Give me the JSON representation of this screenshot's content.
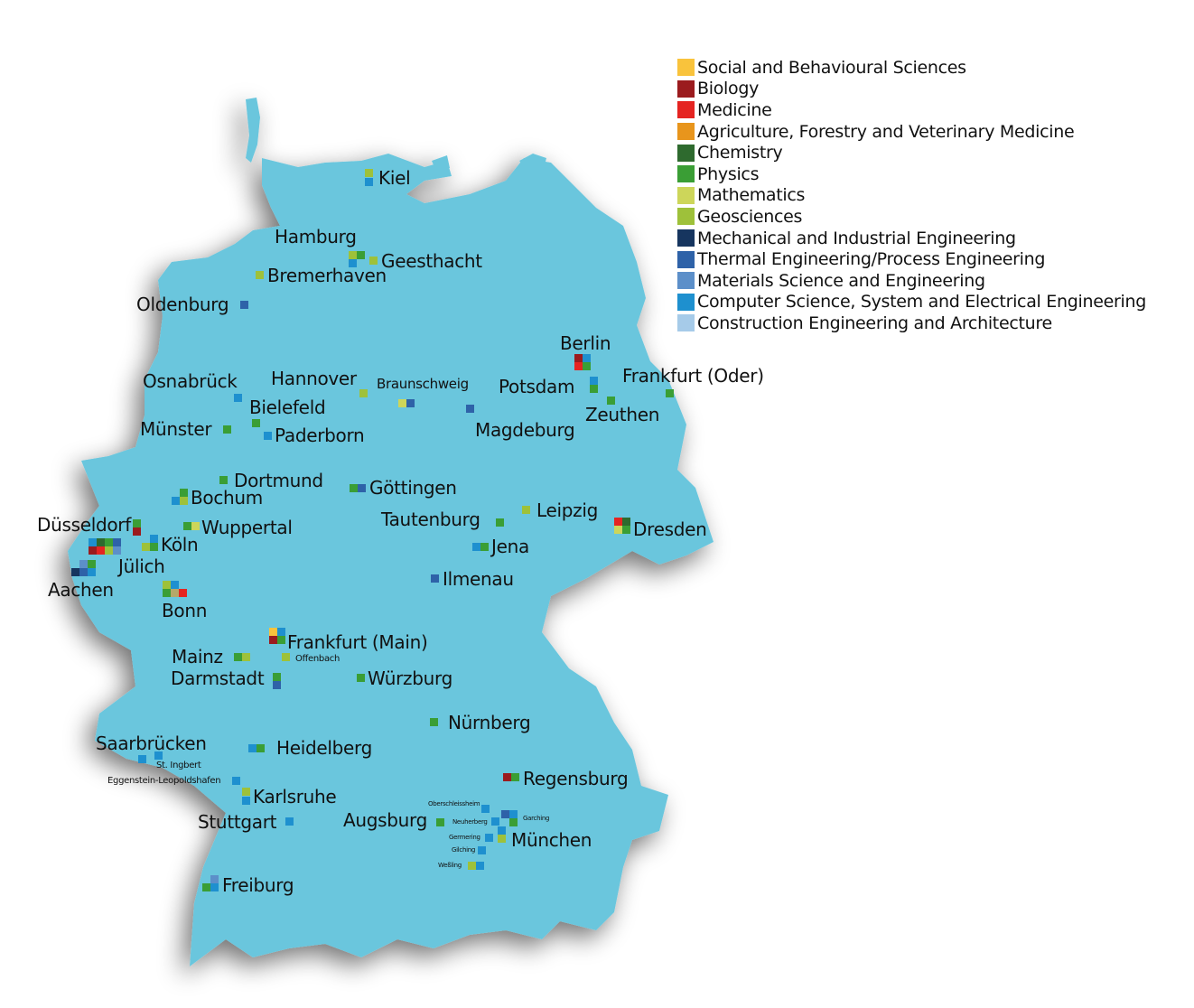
{
  "map_color": "#6ac6dd",
  "legend": [
    {
      "key": "social",
      "label": "Social and Behavioural Sciences",
      "color": "#f9c33c"
    },
    {
      "key": "biology",
      "label": "Biology",
      "color": "#9b1b1e"
    },
    {
      "key": "medicine",
      "label": "Medicine",
      "color": "#e52421"
    },
    {
      "key": "agriculture",
      "label": "Agriculture, Forestry and Veterinary Medicine",
      "color": "#e8951c"
    },
    {
      "key": "chemistry",
      "label": "Chemistry",
      "color": "#2e6a2e"
    },
    {
      "key": "physics",
      "label": "Physics",
      "color": "#3a9e35"
    },
    {
      "key": "mathematics",
      "label": "Mathematics",
      "color": "#cdd65a"
    },
    {
      "key": "geosciences",
      "label": "Geosciences",
      "color": "#9ec13a"
    },
    {
      "key": "mechanical",
      "label": "Mechanical and Industrial Engineering",
      "color": "#16355f"
    },
    {
      "key": "thermal",
      "label": "Thermal Engineering/Process Engineering",
      "color": "#2e62a8"
    },
    {
      "key": "materials",
      "label": "Materials Science and Engineering",
      "color": "#5c8fc9"
    },
    {
      "key": "cs",
      "label": "Computer Science, System and Electrical Engineering",
      "color": "#1e90cf"
    },
    {
      "key": "construction",
      "label": "Construction Engineering and Architecture",
      "color": "#a6cbe9"
    }
  ],
  "cities": [
    {
      "name": "Kiel",
      "fields": [
        "geosciences",
        "cs"
      ]
    },
    {
      "name": "Hamburg",
      "fields": [
        "geosciences",
        "physics",
        "cs"
      ]
    },
    {
      "name": "Geesthacht",
      "fields": [
        "geosciences"
      ]
    },
    {
      "name": "Bremerhaven",
      "fields": [
        "geosciences"
      ]
    },
    {
      "name": "Oldenburg",
      "fields": [
        "thermal"
      ]
    },
    {
      "name": "Osnabrück",
      "fields": [
        "cs"
      ]
    },
    {
      "name": "Hannover",
      "fields": [
        "geosciences"
      ]
    },
    {
      "name": "Braunschweig",
      "fields": [
        "mathematics",
        "thermal"
      ]
    },
    {
      "name": "Bielefeld",
      "fields": [
        "physics"
      ]
    },
    {
      "name": "Paderborn",
      "fields": [
        "cs"
      ]
    },
    {
      "name": "Münster",
      "fields": [
        "physics"
      ]
    },
    {
      "name": "Magdeburg",
      "fields": [
        "thermal"
      ]
    },
    {
      "name": "Berlin",
      "fields": [
        "biology",
        "cs",
        "medicine",
        "physics"
      ]
    },
    {
      "name": "Potsdam",
      "fields": [
        "cs",
        "physics"
      ]
    },
    {
      "name": "Zeuthen",
      "fields": [
        "physics"
      ]
    },
    {
      "name": "Frankfurt (Oder)",
      "fields": [
        "physics"
      ]
    },
    {
      "name": "Dortmund",
      "fields": [
        "physics"
      ]
    },
    {
      "name": "Bochum",
      "fields": [
        "physics",
        "cs",
        "geosciences"
      ]
    },
    {
      "name": "Göttingen",
      "fields": [
        "physics",
        "thermal"
      ]
    },
    {
      "name": "Leipzig",
      "fields": [
        "geosciences"
      ]
    },
    {
      "name": "Tautenburg",
      "fields": [
        "physics"
      ]
    },
    {
      "name": "Jena",
      "fields": [
        "cs",
        "physics"
      ]
    },
    {
      "name": "Dresden",
      "fields": [
        "medicine",
        "chemistry",
        "mathematics",
        "physics"
      ]
    },
    {
      "name": "Ilmenau",
      "fields": [
        "thermal"
      ]
    },
    {
      "name": "Düsseldorf",
      "fields": [
        "physics",
        "biology"
      ]
    },
    {
      "name": "Wuppertal",
      "fields": [
        "physics",
        "mathematics"
      ]
    },
    {
      "name": "Köln",
      "fields": [
        "cs",
        "geosciences",
        "physics"
      ]
    },
    {
      "name": "Jülich",
      "fields": [
        "cs",
        "chemistry",
        "physics",
        "thermal",
        "biology",
        "medicine",
        "geosciences",
        "materials"
      ]
    },
    {
      "name": "Aachen",
      "fields": [
        "materials",
        "physics",
        "mechanical",
        "thermal",
        "cs"
      ]
    },
    {
      "name": "Bonn",
      "fields": [
        "geosciences",
        "cs",
        "physics",
        "agriculture",
        "medicine"
      ]
    },
    {
      "name": "Frankfurt (Main)",
      "fields": [
        "social",
        "cs",
        "biology",
        "physics"
      ]
    },
    {
      "name": "Offenbach",
      "fields": [
        "geosciences"
      ]
    },
    {
      "name": "Mainz",
      "fields": [
        "physics",
        "geosciences"
      ]
    },
    {
      "name": "Darmstadt",
      "fields": [
        "physics",
        "thermal"
      ]
    },
    {
      "name": "Würzburg",
      "fields": [
        "physics"
      ]
    },
    {
      "name": "Nürnberg",
      "fields": [
        "physics"
      ]
    },
    {
      "name": "Saarbrücken",
      "fields": [
        "cs"
      ]
    },
    {
      "name": "St. Ingbert",
      "fields": [
        "cs"
      ]
    },
    {
      "name": "Eggenstein-Leopoldshafen",
      "fields": [
        "cs"
      ]
    },
    {
      "name": "Heidelberg",
      "fields": [
        "cs",
        "physics"
      ]
    },
    {
      "name": "Karlsruhe",
      "fields": [
        "geosciences",
        "cs"
      ]
    },
    {
      "name": "Stuttgart",
      "fields": [
        "cs"
      ]
    },
    {
      "name": "Augsburg",
      "fields": [
        "physics"
      ]
    },
    {
      "name": "Regensburg",
      "fields": [
        "biology",
        "physics"
      ]
    },
    {
      "name": "München",
      "fields": [
        "cs",
        "geosciences"
      ]
    },
    {
      "name": "Oberschleissheim",
      "fields": [
        "cs"
      ]
    },
    {
      "name": "Garching",
      "fields": [
        "thermal",
        "cs",
        "physics"
      ]
    },
    {
      "name": "Neuherberg",
      "fields": [
        "cs"
      ]
    },
    {
      "name": "Germering",
      "fields": [
        "cs"
      ]
    },
    {
      "name": "Gilching",
      "fields": [
        "cs"
      ]
    },
    {
      "name": "Weßling",
      "fields": [
        "geosciences",
        "cs"
      ]
    },
    {
      "name": "Freiburg",
      "fields": [
        "materials",
        "physics",
        "cs"
      ]
    }
  ]
}
